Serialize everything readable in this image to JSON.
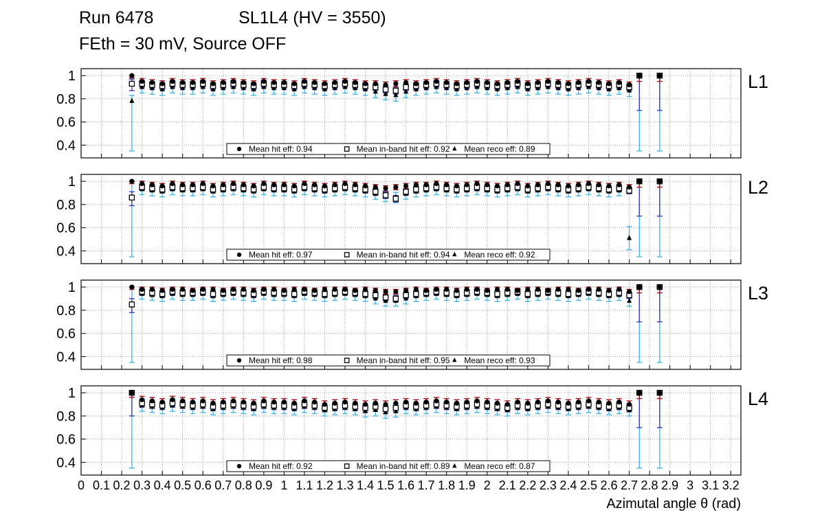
{
  "header": {
    "run": "Run 6478",
    "chamber": "SL1L4 (HV = 3550)",
    "conditions": "FEth = 30 mV, Source OFF"
  },
  "axes": {
    "x_label": "Azimutal angle θ (rad)",
    "x_min": 0,
    "x_max": 3.25,
    "y_min": 0.29,
    "y_max": 1.06,
    "x_tick_labels": [
      "0",
      "0.1",
      "0.2",
      "0.3",
      "0.4",
      "0.5",
      "0.6",
      "0.7",
      "0.8",
      "0.9",
      "1",
      "1.1",
      "1.2",
      "1.3",
      "1.4",
      "1.5",
      "1.6",
      "1.7",
      "1.8",
      "1.9",
      "2",
      "2.1",
      "2.2",
      "2.3",
      "2.4",
      "2.5",
      "2.6",
      "2.7",
      "2.8",
      "2.9",
      "3",
      "3.1",
      "3.2"
    ],
    "y_tick_labels": [
      "1",
      "0.8",
      "0.6",
      "0.4"
    ],
    "y_tick_values": [
      1,
      0.8,
      0.6,
      0.4
    ],
    "grid": true
  },
  "colors": {
    "marker": "#000000",
    "hit_err": "#aa1111",
    "inband_err": "#3344bb",
    "reco_err": "#45b8e8",
    "grid": "#999999",
    "frame": "#000000"
  },
  "chart_data": [
    {
      "type": "scatter",
      "panel_label": "L1",
      "x_start": 0.25,
      "x_step": 0.05,
      "legend": [
        {
          "marker": "circle",
          "label": "Mean hit  eff: 0.94"
        },
        {
          "marker": "open-square",
          "label": "Mean in-band hit eff: 0.92"
        },
        {
          "marker": "triangle",
          "label": "Mean reco eff: 0.89"
        }
      ],
      "series": [
        {
          "name": "hit",
          "marker": "circle",
          "err_color": "#aa1111",
          "err": 0.025,
          "special_err": {
            "0": [
              0.02,
              0.0
            ],
            "50": [
              0.05,
              0.0
            ],
            "52": [
              0.05,
              0.0
            ]
          },
          "y": [
            1.0,
            0.95,
            0.94,
            0.93,
            0.95,
            0.94,
            0.94,
            0.95,
            0.93,
            0.94,
            0.95,
            0.94,
            0.93,
            0.95,
            0.94,
            0.94,
            0.93,
            0.95,
            0.94,
            0.93,
            0.94,
            0.95,
            0.94,
            0.93,
            0.93,
            0.92,
            0.93,
            0.94,
            0.93,
            0.94,
            0.95,
            0.94,
            0.93,
            0.94,
            0.95,
            0.94,
            0.93,
            0.94,
            0.95,
            0.93,
            0.94,
            0.95,
            0.94,
            0.93,
            0.94,
            0.95,
            0.94,
            0.93,
            0.94,
            0.92,
            1.0,
            null,
            1.0
          ]
        },
        {
          "name": "inband",
          "marker": "open-square",
          "err_color": "#3344bb",
          "err": 0.03,
          "special_err": {
            "0": [
              0.06,
              0.04
            ],
            "50": [
              0.3,
              0.0
            ],
            "52": [
              0.3,
              0.0
            ]
          },
          "y": [
            0.93,
            0.93,
            0.92,
            0.91,
            0.93,
            0.92,
            0.92,
            0.93,
            0.91,
            0.92,
            0.93,
            0.92,
            0.91,
            0.93,
            0.92,
            0.92,
            0.91,
            0.93,
            0.92,
            0.91,
            0.92,
            0.93,
            0.92,
            0.91,
            0.9,
            0.88,
            0.87,
            0.9,
            0.91,
            0.92,
            0.93,
            0.92,
            0.91,
            0.92,
            0.93,
            0.92,
            0.91,
            0.92,
            0.93,
            0.91,
            0.92,
            0.93,
            0.92,
            0.91,
            0.92,
            0.93,
            0.92,
            0.91,
            0.92,
            0.9,
            1.0,
            null,
            1.0
          ]
        },
        {
          "name": "reco",
          "marker": "triangle",
          "err_color": "#45b8e8",
          "err": 0.05,
          "special_err": {
            "0": [
              0.43,
              0.05
            ],
            "50": [
              0.65,
              0.0
            ],
            "52": [
              0.65,
              0.0
            ]
          },
          "y": [
            0.78,
            0.9,
            0.89,
            0.88,
            0.9,
            0.89,
            0.89,
            0.9,
            0.88,
            0.89,
            0.9,
            0.89,
            0.88,
            0.9,
            0.89,
            0.89,
            0.88,
            0.9,
            0.89,
            0.88,
            0.89,
            0.9,
            0.89,
            0.88,
            0.86,
            0.84,
            0.83,
            0.86,
            0.88,
            0.89,
            0.9,
            0.89,
            0.88,
            0.89,
            0.9,
            0.89,
            0.88,
            0.89,
            0.9,
            0.88,
            0.89,
            0.9,
            0.89,
            0.88,
            0.89,
            0.9,
            0.89,
            0.88,
            0.89,
            0.87,
            1.0,
            null,
            1.0
          ]
        }
      ]
    },
    {
      "type": "scatter",
      "panel_label": "L2",
      "x_start": 0.25,
      "x_step": 0.05,
      "legend": [
        {
          "marker": "circle",
          "label": "Mean hit  eff: 0.97"
        },
        {
          "marker": "open-square",
          "label": "Mean in-band hit eff: 0.94"
        },
        {
          "marker": "triangle",
          "label": "Mean reco eff: 0.92"
        }
      ],
      "series": [
        {
          "name": "hit",
          "marker": "circle",
          "err_color": "#aa1111",
          "err": 0.022,
          "special_err": {
            "0": [
              0.02,
              0.0
            ],
            "50": [
              0.05,
              0.0
            ],
            "52": [
              0.05,
              0.0
            ]
          },
          "y": [
            1.0,
            0.98,
            0.97,
            0.96,
            0.98,
            0.97,
            0.97,
            0.98,
            0.96,
            0.97,
            0.98,
            0.97,
            0.96,
            0.98,
            0.97,
            0.97,
            0.96,
            0.98,
            0.97,
            0.96,
            0.97,
            0.98,
            0.97,
            0.96,
            0.95,
            0.94,
            0.95,
            0.96,
            0.97,
            0.97,
            0.98,
            0.97,
            0.96,
            0.97,
            0.98,
            0.97,
            0.96,
            0.97,
            0.98,
            0.96,
            0.97,
            0.98,
            0.97,
            0.96,
            0.97,
            0.98,
            0.97,
            0.96,
            0.97,
            0.95,
            1.0,
            null,
            1.0
          ]
        },
        {
          "name": "inband",
          "marker": "open-square",
          "err_color": "#3344bb",
          "err": 0.028,
          "special_err": {
            "0": [
              0.07,
              0.05
            ],
            "50": [
              0.3,
              0.0
            ],
            "52": [
              0.3,
              0.0
            ]
          },
          "y": [
            0.86,
            0.95,
            0.94,
            0.93,
            0.95,
            0.94,
            0.94,
            0.95,
            0.93,
            0.94,
            0.95,
            0.94,
            0.93,
            0.95,
            0.94,
            0.94,
            0.93,
            0.95,
            0.94,
            0.93,
            0.94,
            0.95,
            0.94,
            0.93,
            0.91,
            0.88,
            0.85,
            0.91,
            0.93,
            0.94,
            0.95,
            0.94,
            0.93,
            0.94,
            0.95,
            0.94,
            0.93,
            0.94,
            0.95,
            0.93,
            0.94,
            0.95,
            0.94,
            0.93,
            0.94,
            0.95,
            0.94,
            0.93,
            0.94,
            0.92,
            1.0,
            null,
            1.0
          ]
        },
        {
          "name": "reco",
          "marker": "triangle",
          "err_color": "#45b8e8",
          "err": 0.045,
          "special_err": {
            "0": [
              0.5,
              0.15
            ],
            "49": [
              0.1,
              0.1
            ],
            "50": [
              0.65,
              0.0
            ],
            "52": [
              0.65,
              0.0
            ]
          },
          "y": [
            0.85,
            0.93,
            0.92,
            0.91,
            0.93,
            0.92,
            0.92,
            0.93,
            0.91,
            0.92,
            0.93,
            0.92,
            0.91,
            0.93,
            0.92,
            0.92,
            0.91,
            0.93,
            0.92,
            0.91,
            0.92,
            0.93,
            0.92,
            0.91,
            0.89,
            0.87,
            0.86,
            0.89,
            0.91,
            0.92,
            0.93,
            0.92,
            0.91,
            0.92,
            0.93,
            0.92,
            0.91,
            0.92,
            0.93,
            0.91,
            0.92,
            0.93,
            0.92,
            0.91,
            0.92,
            0.93,
            0.92,
            0.91,
            0.92,
            0.51,
            1.0,
            null,
            1.0
          ]
        }
      ]
    },
    {
      "type": "scatter",
      "panel_label": "L3",
      "x_start": 0.25,
      "x_step": 0.05,
      "legend": [
        {
          "marker": "circle",
          "label": "Mean hit  eff: 0.98"
        },
        {
          "marker": "open-square",
          "label": "Mean in-band hit eff: 0.95"
        },
        {
          "marker": "triangle",
          "label": "Mean reco eff: 0.93"
        }
      ],
      "series": [
        {
          "name": "hit",
          "marker": "circle",
          "err_color": "#aa1111",
          "err": 0.02,
          "special_err": {
            "0": [
              0.02,
              0.0
            ],
            "50": [
              0.05,
              0.0
            ],
            "52": [
              0.05,
              0.0
            ]
          },
          "y": [
            1.0,
            0.98,
            0.98,
            0.97,
            0.98,
            0.98,
            0.97,
            0.98,
            0.98,
            0.97,
            0.98,
            0.98,
            0.97,
            0.98,
            0.98,
            0.97,
            0.98,
            0.98,
            0.97,
            0.98,
            0.98,
            0.98,
            0.97,
            0.98,
            0.97,
            0.96,
            0.96,
            0.97,
            0.98,
            0.97,
            0.98,
            0.98,
            0.97,
            0.98,
            0.98,
            0.97,
            0.98,
            0.98,
            0.97,
            0.98,
            0.98,
            0.97,
            0.98,
            0.98,
            0.97,
            0.98,
            0.98,
            0.97,
            0.98,
            0.96,
            1.0,
            null,
            1.0
          ]
        },
        {
          "name": "inband",
          "marker": "open-square",
          "err_color": "#3344bb",
          "err": 0.028,
          "special_err": {
            "0": [
              0.07,
              0.05
            ],
            "50": [
              0.3,
              0.0
            ],
            "52": [
              0.3,
              0.0
            ]
          },
          "y": [
            0.85,
            0.96,
            0.95,
            0.94,
            0.96,
            0.95,
            0.95,
            0.96,
            0.94,
            0.95,
            0.96,
            0.95,
            0.94,
            0.96,
            0.95,
            0.95,
            0.94,
            0.96,
            0.95,
            0.94,
            0.95,
            0.96,
            0.95,
            0.94,
            0.93,
            0.91,
            0.9,
            0.93,
            0.94,
            0.95,
            0.96,
            0.95,
            0.94,
            0.95,
            0.96,
            0.95,
            0.94,
            0.95,
            0.96,
            0.94,
            0.95,
            0.96,
            0.95,
            0.94,
            0.95,
            0.96,
            0.95,
            0.94,
            0.95,
            0.93,
            1.0,
            null,
            1.0
          ]
        },
        {
          "name": "reco",
          "marker": "triangle",
          "err_color": "#45b8e8",
          "err": 0.045,
          "special_err": {
            "0": [
              0.49,
              0.16
            ],
            "50": [
              0.65,
              0.0
            ],
            "52": [
              0.65,
              0.0
            ]
          },
          "y": [
            0.84,
            0.94,
            0.93,
            0.92,
            0.94,
            0.93,
            0.93,
            0.94,
            0.92,
            0.93,
            0.94,
            0.93,
            0.92,
            0.94,
            0.93,
            0.93,
            0.92,
            0.94,
            0.93,
            0.92,
            0.93,
            0.94,
            0.93,
            0.92,
            0.9,
            0.88,
            0.88,
            0.9,
            0.92,
            0.93,
            0.94,
            0.93,
            0.92,
            0.93,
            0.94,
            0.93,
            0.92,
            0.93,
            0.94,
            0.92,
            0.93,
            0.94,
            0.93,
            0.92,
            0.93,
            0.94,
            0.93,
            0.92,
            0.93,
            0.88,
            1.0,
            null,
            1.0
          ]
        }
      ]
    },
    {
      "type": "scatter",
      "panel_label": "L4",
      "x_start": 0.25,
      "x_step": 0.05,
      "legend": [
        {
          "marker": "circle",
          "label": "Mean hit  eff: 0.92"
        },
        {
          "marker": "open-square",
          "label": "Mean in-band hit eff: 0.89"
        },
        {
          "marker": "triangle",
          "label": "Mean reco eff: 0.87"
        }
      ],
      "series": [
        {
          "name": "hit",
          "marker": "circle",
          "err_color": "#aa1111",
          "err": 0.03,
          "special_err": {
            "0": [
              0.04,
              0.0
            ],
            "50": [
              0.05,
              0.0
            ],
            "52": [
              0.05,
              0.0
            ]
          },
          "y": [
            1.0,
            0.94,
            0.93,
            0.92,
            0.94,
            0.93,
            0.92,
            0.93,
            0.91,
            0.92,
            0.93,
            0.92,
            0.91,
            0.93,
            0.92,
            0.92,
            0.91,
            0.93,
            0.92,
            0.9,
            0.91,
            0.92,
            0.91,
            0.9,
            0.91,
            0.9,
            0.91,
            0.92,
            0.91,
            0.92,
            0.93,
            0.92,
            0.91,
            0.92,
            0.93,
            0.92,
            0.91,
            0.9,
            0.92,
            0.91,
            0.92,
            0.93,
            0.92,
            0.91,
            0.92,
            0.93,
            0.92,
            0.91,
            0.92,
            0.9,
            1.0,
            null,
            1.0
          ]
        },
        {
          "name": "inband",
          "marker": "open-square",
          "err_color": "#3344bb",
          "err": 0.035,
          "special_err": {
            "0": [
              0.2,
              0.0
            ],
            "50": [
              0.3,
              0.0
            ],
            "52": [
              0.3,
              0.0
            ]
          },
          "y": [
            1.0,
            0.91,
            0.9,
            0.89,
            0.91,
            0.9,
            0.89,
            0.9,
            0.88,
            0.89,
            0.9,
            0.89,
            0.88,
            0.9,
            0.89,
            0.89,
            0.88,
            0.9,
            0.89,
            0.87,
            0.88,
            0.89,
            0.88,
            0.87,
            0.88,
            0.86,
            0.87,
            0.89,
            0.88,
            0.89,
            0.9,
            0.89,
            0.88,
            0.89,
            0.9,
            0.89,
            0.88,
            0.87,
            0.89,
            0.88,
            0.89,
            0.9,
            0.89,
            0.88,
            0.89,
            0.9,
            0.89,
            0.88,
            0.89,
            0.87,
            1.0,
            null,
            1.0
          ]
        },
        {
          "name": "reco",
          "marker": "triangle",
          "err_color": "#45b8e8",
          "err": 0.05,
          "special_err": {
            "0": [
              0.65,
              0.0
            ],
            "50": [
              0.65,
              0.0
            ],
            "52": [
              0.65,
              0.0
            ]
          },
          "y": [
            1.0,
            0.89,
            0.88,
            0.87,
            0.89,
            0.88,
            0.87,
            0.88,
            0.86,
            0.87,
            0.88,
            0.87,
            0.86,
            0.88,
            0.87,
            0.87,
            0.86,
            0.88,
            0.87,
            0.85,
            0.86,
            0.87,
            0.86,
            0.84,
            0.85,
            0.83,
            0.84,
            0.87,
            0.86,
            0.87,
            0.88,
            0.87,
            0.86,
            0.87,
            0.88,
            0.87,
            0.86,
            0.85,
            0.87,
            0.86,
            0.87,
            0.88,
            0.87,
            0.86,
            0.87,
            0.88,
            0.87,
            0.86,
            0.87,
            0.85,
            1.0,
            null,
            1.0
          ]
        }
      ]
    }
  ]
}
